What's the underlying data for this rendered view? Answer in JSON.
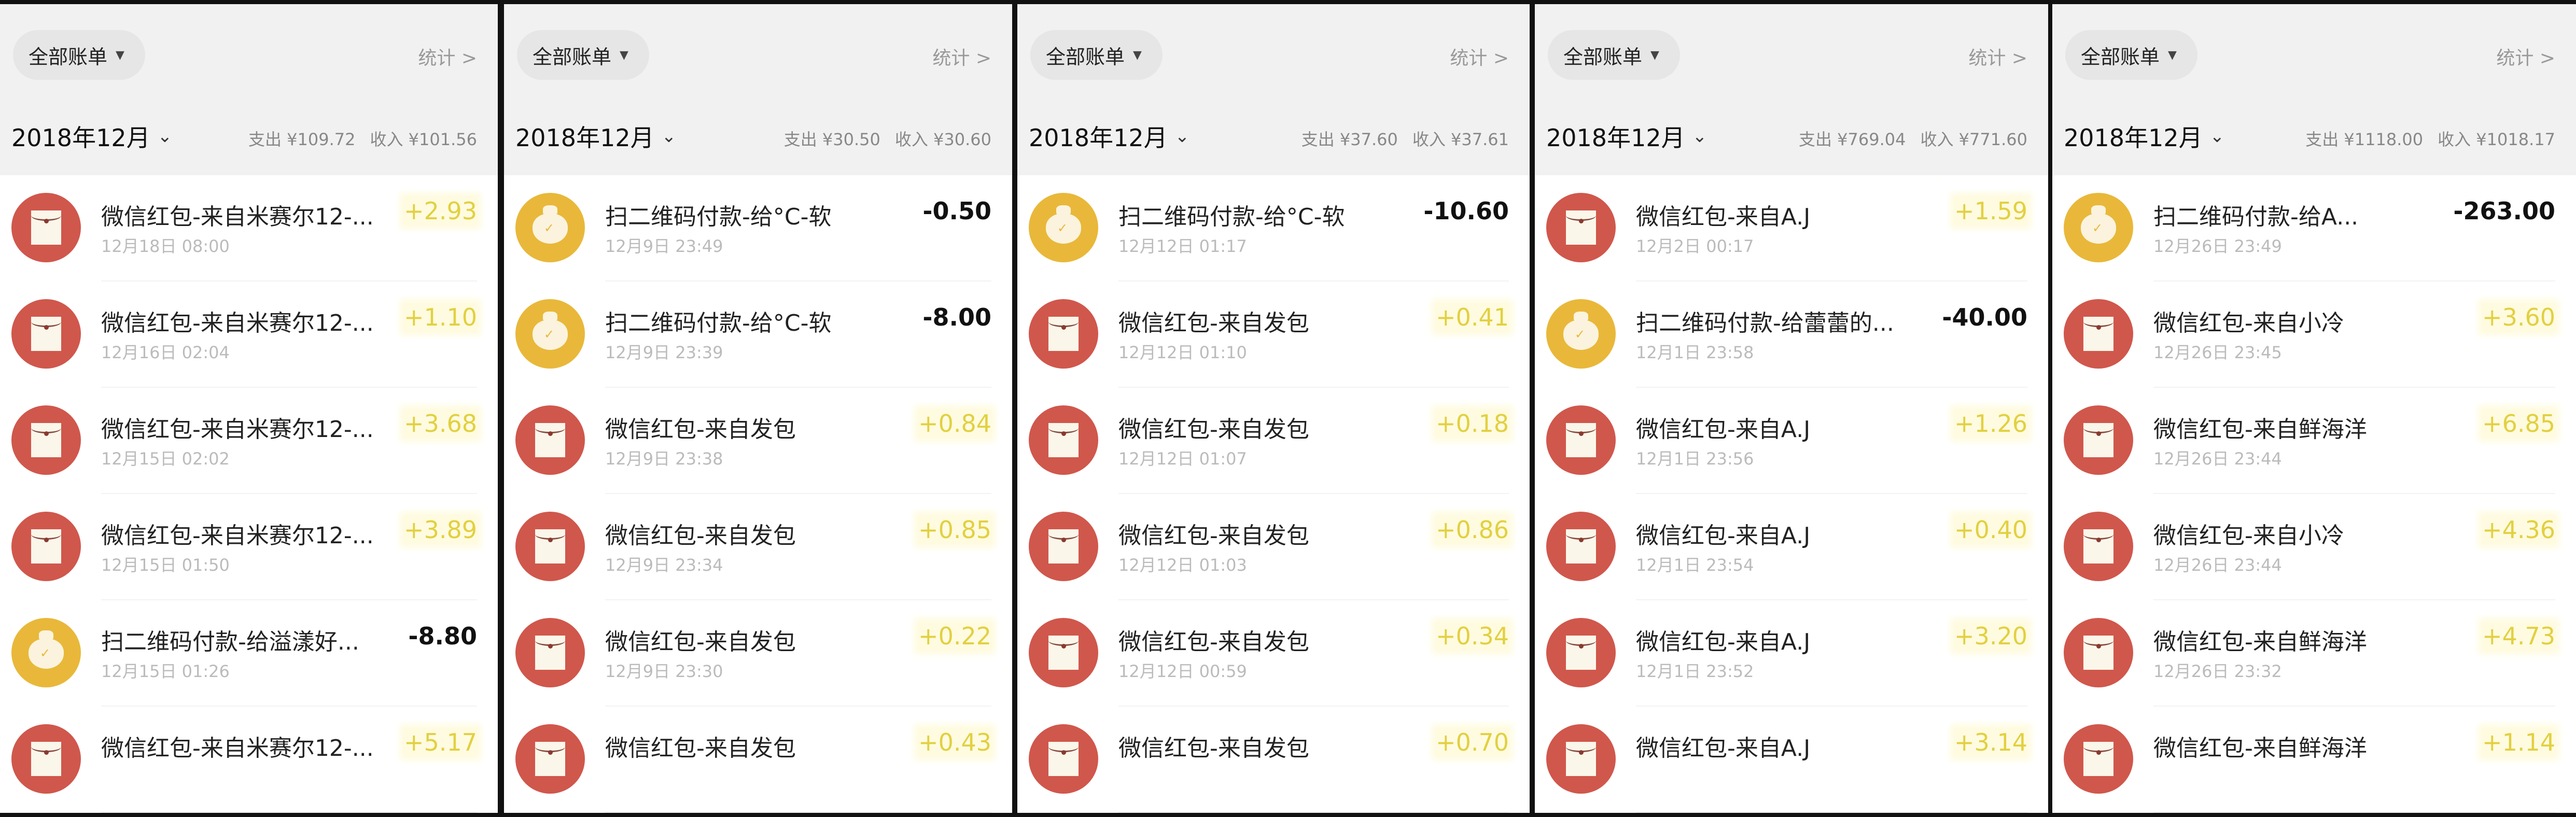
{
  "colors": {
    "red_packet": "#d0574c",
    "qr_payment": "#e9b83a",
    "income": "#e2d040",
    "expense": "#111111"
  },
  "panels": [
    {
      "filter_label": "全部账单",
      "stats_label": "统计 >",
      "month": "2018年12月",
      "expense": "支出 ¥109.72",
      "income": "收入 ¥101.56",
      "rows": [
        {
          "type": "red-packet",
          "title": "微信红包-来自米赛尔12-...",
          "date": "12月18日 08:00",
          "amount": "+2.93"
        },
        {
          "type": "red-packet",
          "title": "微信红包-来自米赛尔12-...",
          "date": "12月16日 02:04",
          "amount": "+1.10"
        },
        {
          "type": "red-packet",
          "title": "微信红包-来自米赛尔12-...",
          "date": "12月15日 02:02",
          "amount": "+3.68"
        },
        {
          "type": "red-packet",
          "title": "微信红包-来自米赛尔12-...",
          "date": "12月15日 01:50",
          "amount": "+3.89"
        },
        {
          "type": "qr-payment",
          "title": "扫二维码付款-给溢漾好...",
          "date": "12月15日 01:26",
          "amount": "-8.80"
        },
        {
          "type": "red-packet",
          "title": "微信红包-来自米赛尔12-...",
          "date": "",
          "amount": "+5.17"
        }
      ]
    },
    {
      "filter_label": "全部账单",
      "stats_label": "统计 >",
      "month": "2018年12月",
      "expense": "支出 ¥30.50",
      "income": "收入 ¥30.60",
      "rows": [
        {
          "type": "qr-payment",
          "title": "扫二维码付款-给°C-软",
          "date": "12月9日 23:49",
          "amount": "-0.50"
        },
        {
          "type": "qr-payment",
          "title": "扫二维码付款-给°C-软",
          "date": "12月9日 23:39",
          "amount": "-8.00"
        },
        {
          "type": "red-packet",
          "title": "微信红包-来自发包",
          "date": "12月9日 23:38",
          "amount": "+0.84"
        },
        {
          "type": "red-packet",
          "title": "微信红包-来自发包",
          "date": "12月9日 23:34",
          "amount": "+0.85"
        },
        {
          "type": "red-packet",
          "title": "微信红包-来自发包",
          "date": "12月9日 23:30",
          "amount": "+0.22"
        },
        {
          "type": "red-packet",
          "title": "微信红包-来自发包",
          "date": "",
          "amount": "+0.43"
        }
      ]
    },
    {
      "filter_label": "全部账单",
      "stats_label": "统计 >",
      "month": "2018年12月",
      "expense": "支出 ¥37.60",
      "income": "收入 ¥37.61",
      "rows": [
        {
          "type": "qr-payment",
          "title": "扫二维码付款-给°C-软",
          "date": "12月12日 01:17",
          "amount": "-10.60"
        },
        {
          "type": "red-packet",
          "title": "微信红包-来自发包",
          "date": "12月12日 01:10",
          "amount": "+0.41"
        },
        {
          "type": "red-packet",
          "title": "微信红包-来自发包",
          "date": "12月12日 01:07",
          "amount": "+0.18"
        },
        {
          "type": "red-packet",
          "title": "微信红包-来自发包",
          "date": "12月12日 01:03",
          "amount": "+0.86"
        },
        {
          "type": "red-packet",
          "title": "微信红包-来自发包",
          "date": "12月12日 00:59",
          "amount": "+0.34"
        },
        {
          "type": "red-packet",
          "title": "微信红包-来自发包",
          "date": "",
          "amount": "+0.70"
        }
      ]
    },
    {
      "filter_label": "全部账单",
      "stats_label": "统计 >",
      "month": "2018年12月",
      "expense": "支出 ¥769.04",
      "income": "收入 ¥771.60",
      "rows": [
        {
          "type": "red-packet",
          "title": "微信红包-来自A.J",
          "date": "12月2日 00:17",
          "amount": "+1.59"
        },
        {
          "type": "qr-payment",
          "title": "扫二维码付款-给蕾蕾的...",
          "date": "12月1日 23:58",
          "amount": "-40.00"
        },
        {
          "type": "red-packet",
          "title": "微信红包-来自A.J",
          "date": "12月1日 23:56",
          "amount": "+1.26"
        },
        {
          "type": "red-packet",
          "title": "微信红包-来自A.J",
          "date": "12月1日 23:54",
          "amount": "+0.40"
        },
        {
          "type": "red-packet",
          "title": "微信红包-来自A.J",
          "date": "12月1日 23:52",
          "amount": "+3.20"
        },
        {
          "type": "red-packet",
          "title": "微信红包-来自A.J",
          "date": "",
          "amount": "+3.14"
        }
      ]
    },
    {
      "filter_label": "全部账单",
      "stats_label": "统计 >",
      "month": "2018年12月",
      "expense": "支出 ¥1118.00",
      "income": "收入 ¥1018.17",
      "rows": [
        {
          "type": "qr-payment",
          "title": "扫二维码付款-给A...",
          "date": "12月26日 23:49",
          "amount": "-263.00"
        },
        {
          "type": "red-packet",
          "title": "微信红包-来自小冷",
          "date": "12月26日 23:45",
          "amount": "+3.60"
        },
        {
          "type": "red-packet",
          "title": "微信红包-来自鲜海洋",
          "date": "12月26日 23:44",
          "amount": "+6.85"
        },
        {
          "type": "red-packet",
          "title": "微信红包-来自小冷",
          "date": "12月26日 23:44",
          "amount": "+4.36"
        },
        {
          "type": "red-packet",
          "title": "微信红包-来自鲜海洋",
          "date": "12月26日 23:32",
          "amount": "+4.73"
        },
        {
          "type": "red-packet",
          "title": "微信红包-来自鲜海洋",
          "date": "",
          "amount": "+1.14"
        }
      ]
    }
  ]
}
